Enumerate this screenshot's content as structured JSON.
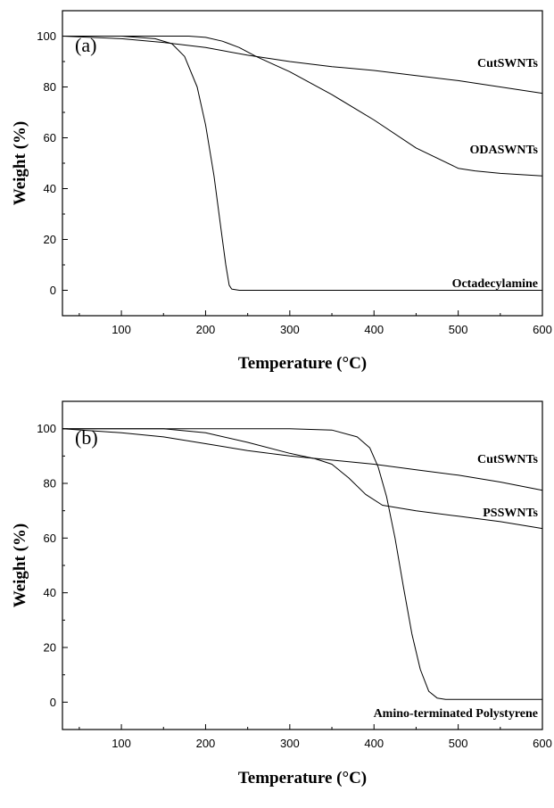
{
  "chart_data": [
    {
      "type": "line",
      "panel_label": "(a)",
      "xlabel": "Temperature (°C)",
      "ylabel": "Weight (%)",
      "xlim": [
        30,
        600
      ],
      "ylim": [
        -10,
        110
      ],
      "xticks": [
        100,
        200,
        300,
        400,
        500,
        600
      ],
      "yticks": [
        0,
        20,
        40,
        60,
        80,
        100
      ],
      "grid": false,
      "series": [
        {
          "name": "CutSWNTs",
          "x": [
            30,
            100,
            150,
            200,
            250,
            300,
            350,
            400,
            450,
            500,
            550,
            600
          ],
          "y": [
            100,
            99,
            97.5,
            95.5,
            92.5,
            90,
            88,
            86.5,
            84.5,
            82.5,
            80,
            77.5
          ]
        },
        {
          "name": "ODASWNTs",
          "x": [
            30,
            100,
            150,
            180,
            200,
            220,
            240,
            260,
            280,
            300,
            350,
            400,
            450,
            500,
            520,
            550,
            600
          ],
          "y": [
            100,
            100,
            100,
            100,
            99.5,
            98,
            95.5,
            92,
            89,
            86,
            77,
            67,
            56,
            48,
            47,
            46,
            45
          ]
        },
        {
          "name": "Octadecylamine",
          "x": [
            30,
            100,
            140,
            160,
            175,
            190,
            200,
            210,
            218,
            224,
            228,
            231,
            240,
            300,
            400,
            500,
            600
          ],
          "y": [
            100,
            100,
            99,
            97,
            92,
            80,
            65,
            45,
            25,
            10,
            2,
            0.5,
            0,
            0,
            0,
            0,
            0
          ]
        }
      ]
    },
    {
      "type": "line",
      "panel_label": "(b)",
      "xlabel": "Temperature (°C)",
      "ylabel": "Weight (%)",
      "xlim": [
        30,
        600
      ],
      "ylim": [
        -10,
        110
      ],
      "xticks": [
        100,
        200,
        300,
        400,
        500,
        600
      ],
      "yticks": [
        0,
        20,
        40,
        60,
        80,
        100
      ],
      "grid": false,
      "series": [
        {
          "name": "CutSWNTs",
          "x": [
            30,
            100,
            150,
            200,
            250,
            300,
            350,
            400,
            450,
            500,
            550,
            600
          ],
          "y": [
            100,
            98.5,
            97,
            94.5,
            92,
            90,
            88.5,
            87,
            85,
            83,
            80.5,
            77.5
          ]
        },
        {
          "name": "PSSWNTs",
          "x": [
            30,
            100,
            150,
            200,
            250,
            300,
            330,
            350,
            370,
            390,
            410,
            430,
            450,
            500,
            550,
            600
          ],
          "y": [
            100,
            100,
            100,
            98.5,
            95,
            91,
            89,
            87,
            82,
            76,
            72,
            71,
            70,
            68,
            66,
            63.5
          ]
        },
        {
          "name": "Amino-terminated Polystyrene",
          "x": [
            30,
            100,
            200,
            300,
            350,
            380,
            395,
            405,
            415,
            425,
            435,
            445,
            455,
            465,
            475,
            485,
            500,
            550,
            600
          ],
          "y": [
            100,
            100,
            100,
            100,
            99.5,
            97,
            93,
            86,
            75,
            60,
            42,
            25,
            12,
            4,
            1.5,
            1,
            1,
            1,
            1
          ]
        }
      ]
    }
  ]
}
